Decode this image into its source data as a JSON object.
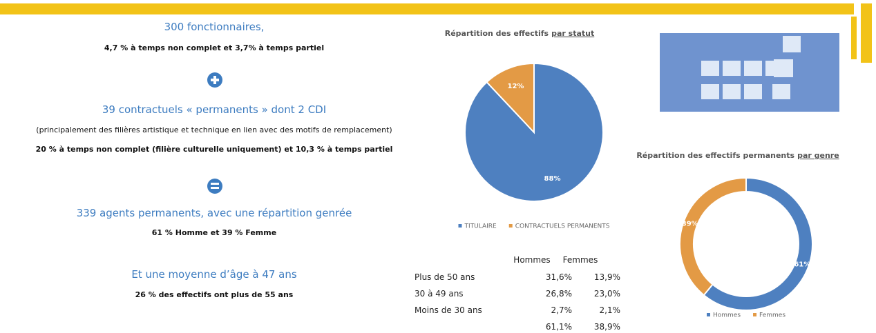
{
  "summary": {
    "fonctionnaires": "300 fonctionnaires,",
    "fonctionnaires_detail": "4,7 % à temps non complet et  3,7% à temps partiel",
    "contractuels": "39 contractuels « permanents » dont 2 CDI",
    "contractuels_note": "(principalement des filières artistique et technique en lien avec des motifs de remplacement)",
    "contractuels_detail": "20 % à temps non complet (filière culturelle uniquement) et 10,3 % à temps partiel",
    "permanents": "339 agents permanents, avec une répartition genrée",
    "permanents_detail": "61 % Homme et 39 % Femme",
    "age": "Et une moyenne d’âge à 47 ans",
    "age_detail": "26 % des effectifs ont plus de 55 ans"
  },
  "chart_data": [
    {
      "type": "pie",
      "title": "Répartition des effectifs",
      "title_emphasis": "par statut",
      "categories": [
        "TITULAIRE",
        "CONTRACTUELS PERMANENTS"
      ],
      "values": [
        88,
        12
      ],
      "value_labels": [
        "88%",
        "12%"
      ],
      "colors": [
        "#4e80c0",
        "#e39a45"
      ]
    },
    {
      "type": "donut",
      "title": "Répartition des effectifs permanents",
      "title_emphasis": "par genre",
      "categories": [
        "Hommes",
        "Femmes"
      ],
      "values": [
        61,
        39
      ],
      "value_labels": [
        "61%",
        "39%"
      ],
      "colors": [
        "#4e80c0",
        "#e39a45"
      ]
    }
  ],
  "table": {
    "columns": [
      "Hommes",
      "Femmes"
    ],
    "rows": [
      {
        "label": "Plus de 50 ans",
        "values": [
          "31,6%",
          "13,9%"
        ]
      },
      {
        "label": "30 à 49  ans",
        "values": [
          "26,8%",
          "23,0%"
        ]
      },
      {
        "label": "Moins de 30 ans",
        "values": [
          "2,7%",
          "2,1%"
        ]
      }
    ],
    "totals": [
      "61,1%",
      "38,9%"
    ]
  }
}
